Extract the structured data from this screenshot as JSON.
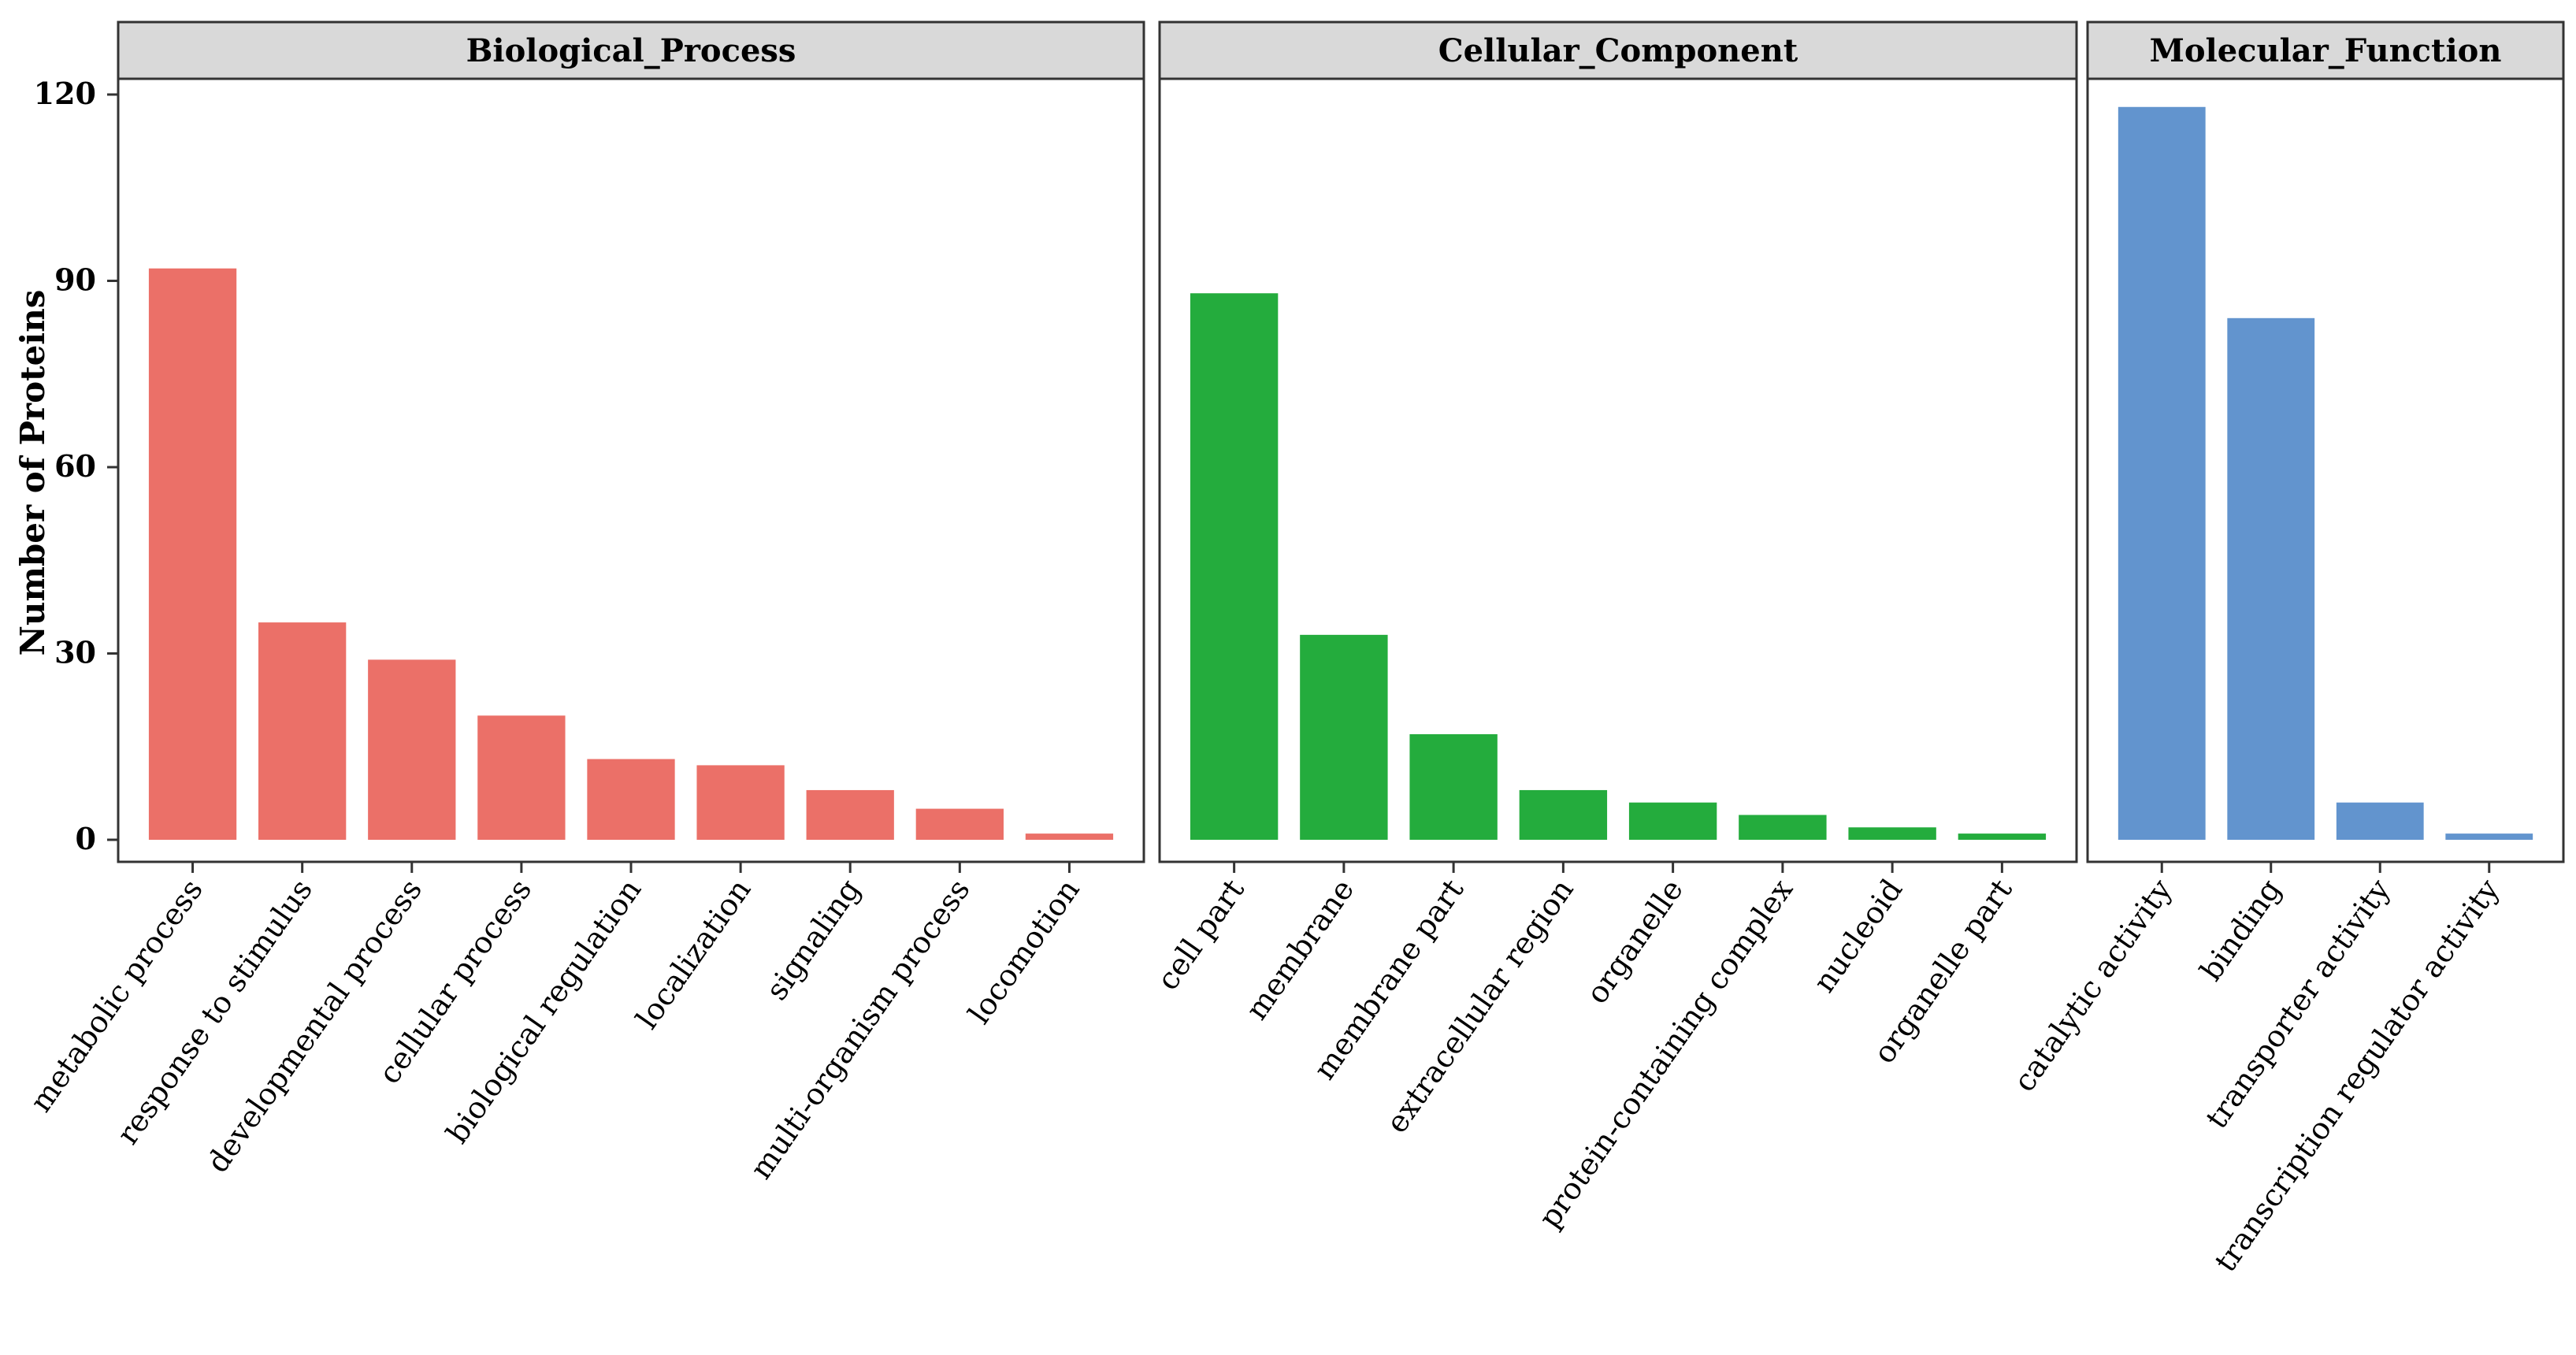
{
  "chart_data": {
    "type": "bar",
    "ylabel": "Number of Proteins",
    "xlabel": "",
    "ylim": [
      0,
      120
    ],
    "yticks": [
      0,
      30,
      60,
      90,
      120
    ],
    "grid": false,
    "legend": "none",
    "facets": [
      {
        "title": "Biological_Process",
        "color": "#EB7068",
        "categories": [
          "metabolic process",
          "response to stimulus",
          "developmental process",
          "cellular process",
          "biological regulation",
          "localization",
          "signaling",
          "multi-organism process",
          "locomotion"
        ],
        "values": [
          92,
          35,
          29,
          20,
          13,
          12,
          8,
          5,
          1
        ]
      },
      {
        "title": "Cellular_Component",
        "color": "#24AC3D",
        "categories": [
          "cell part",
          "membrane",
          "membrane part",
          "extracellular region",
          "organelle",
          "protein-containing complex",
          "nucleoid",
          "organelle part"
        ],
        "values": [
          88,
          33,
          17,
          8,
          6,
          4,
          2,
          1
        ]
      },
      {
        "title": "Molecular_Function",
        "color": "#6294CE",
        "categories": [
          "catalytic activity",
          "binding",
          "transporter activity",
          "transcription regulator activity"
        ],
        "values": [
          118,
          84,
          6,
          1
        ]
      }
    ]
  }
}
